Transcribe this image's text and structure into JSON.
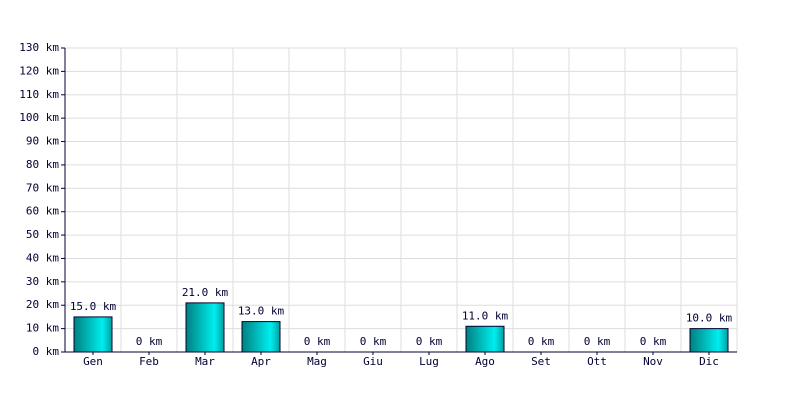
{
  "chart_data": {
    "type": "bar",
    "categories": [
      "Gen",
      "Feb",
      "Mar",
      "Apr",
      "Mag",
      "Giu",
      "Lug",
      "Ago",
      "Set",
      "Ott",
      "Nov",
      "Dic"
    ],
    "values": [
      15,
      0,
      21,
      13,
      0,
      0,
      0,
      11,
      0,
      0,
      0,
      10
    ],
    "value_labels": [
      "15.0 km",
      "0 km",
      "21.0 km",
      "13.0 km",
      "0 km",
      "0 km",
      "0 km",
      "11.0 km",
      "0 km",
      "0 km",
      "0 km",
      "10.0 km"
    ],
    "color": "#00eeee",
    "ylim": [
      0,
      130
    ],
    "yticks": [
      {
        "value": 0,
        "label": "0 km"
      },
      {
        "value": 10,
        "label": "10 km"
      },
      {
        "value": 20,
        "label": "20 km"
      },
      {
        "value": 30,
        "label": "30 km"
      },
      {
        "value": 40,
        "label": "40 km"
      },
      {
        "value": 50,
        "label": "50 km"
      },
      {
        "value": 60,
        "label": "60 km"
      },
      {
        "value": 70,
        "label": "70 km"
      },
      {
        "value": 80,
        "label": "80 km"
      },
      {
        "value": 90,
        "label": "90 km"
      },
      {
        "value": 100,
        "label": "100 km"
      },
      {
        "value": 110,
        "label": "110 km"
      },
      {
        "value": 120,
        "label": "120 km"
      },
      {
        "value": 130,
        "label": "130 km"
      }
    ],
    "grid": true
  }
}
